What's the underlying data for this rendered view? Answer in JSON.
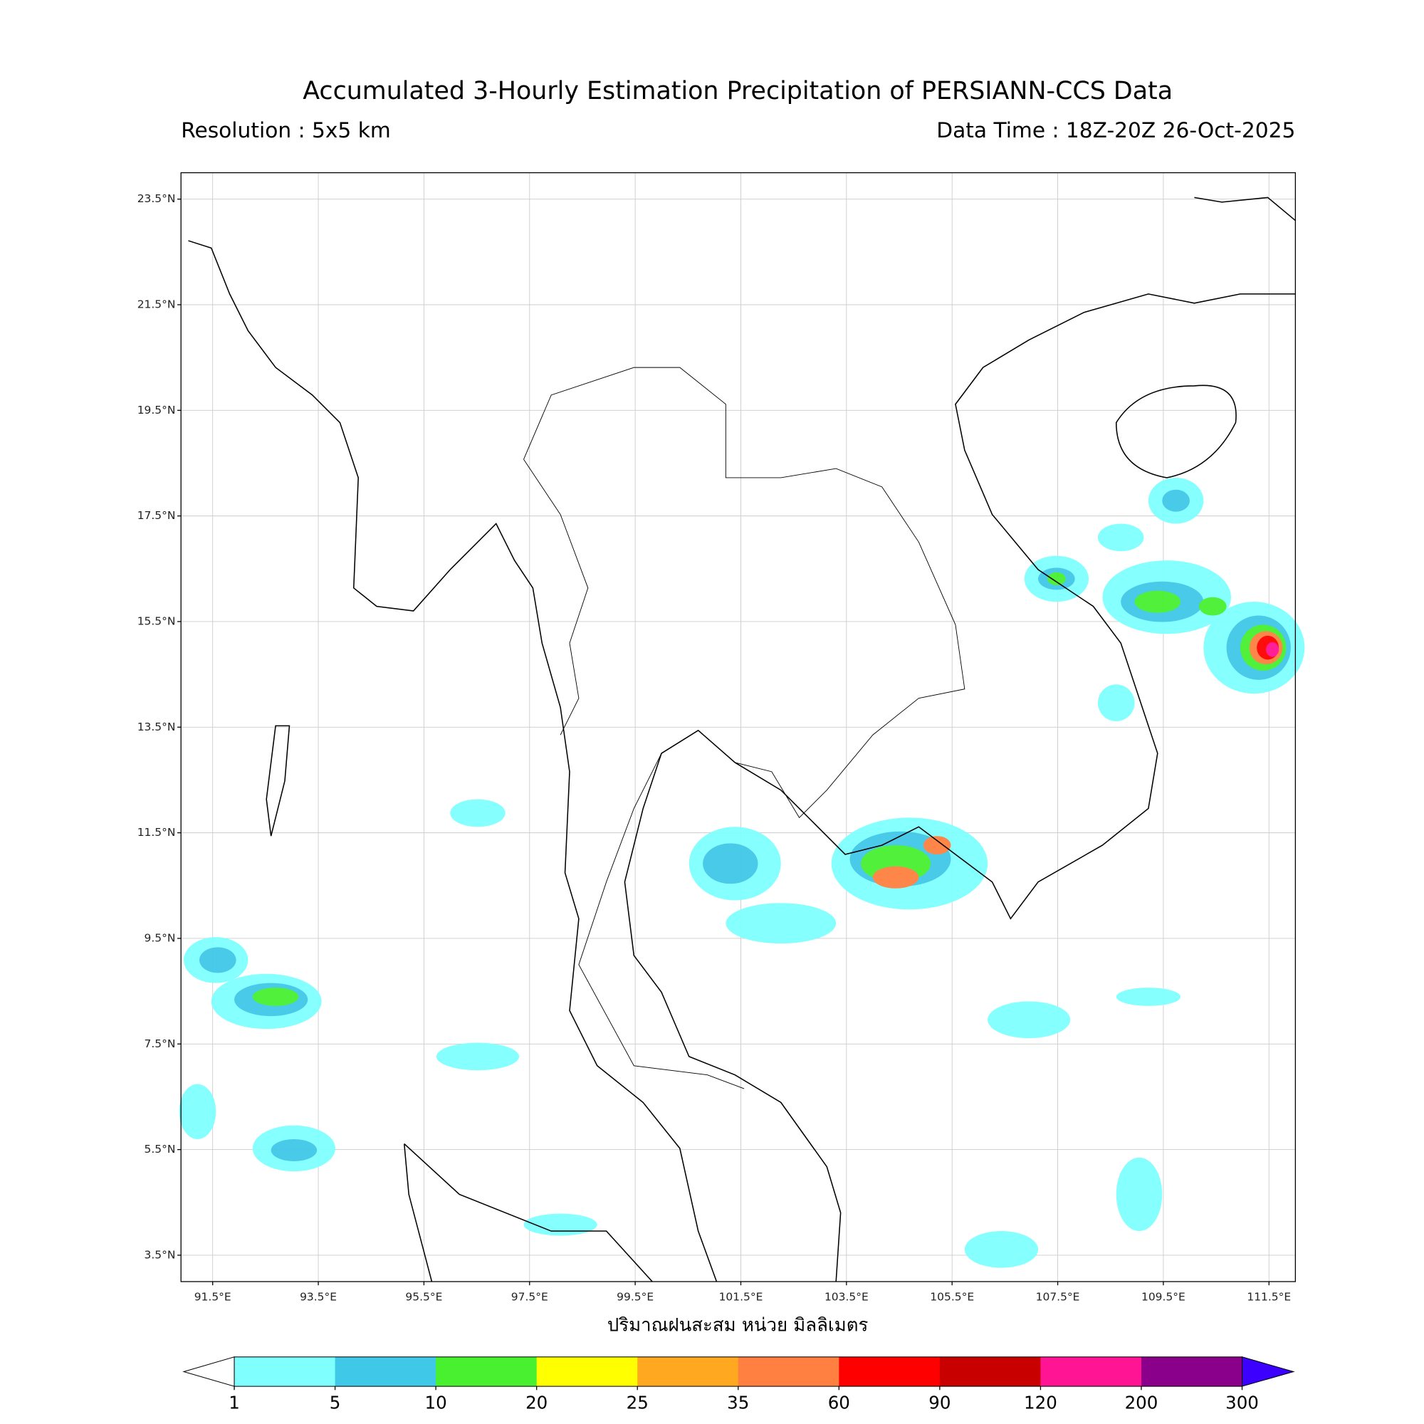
{
  "header": {
    "title": "Accumulated 3-Hourly Estimation Precipitation of PERSIANN-CCS Data",
    "resolution": "Resolution : 5x5 km",
    "data_time": "Data Time : 18Z-20Z 26-Oct-2025"
  },
  "map": {
    "lon_range": [
      90.9,
      112.0
    ],
    "lat_range": [
      3.0,
      24.0
    ],
    "lat_ticks": [
      {
        "value": 23.5,
        "label": "23.5°N"
      },
      {
        "value": 21.5,
        "label": "21.5°N"
      },
      {
        "value": 19.5,
        "label": "19.5°N"
      },
      {
        "value": 17.5,
        "label": "17.5°N"
      },
      {
        "value": 15.5,
        "label": "15.5°N"
      },
      {
        "value": 13.5,
        "label": "13.5°N"
      },
      {
        "value": 11.5,
        "label": "11.5°N"
      },
      {
        "value": 9.5,
        "label": "9.5°N"
      },
      {
        "value": 7.5,
        "label": "7.5°N"
      },
      {
        "value": 5.5,
        "label": "5.5°N"
      },
      {
        "value": 3.5,
        "label": "3.5°N"
      }
    ],
    "lon_ticks": [
      {
        "value": 91.5,
        "label": "91.5°E"
      },
      {
        "value": 93.5,
        "label": "93.5°E"
      },
      {
        "value": 95.5,
        "label": "95.5°E"
      },
      {
        "value": 97.5,
        "label": "97.5°E"
      },
      {
        "value": 99.5,
        "label": "99.5°E"
      },
      {
        "value": 101.5,
        "label": "101.5°E"
      },
      {
        "value": 103.5,
        "label": "103.5°E"
      },
      {
        "value": 105.5,
        "label": "105.5°E"
      },
      {
        "value": 107.5,
        "label": "107.5°E"
      },
      {
        "value": 109.5,
        "label": "109.5°E"
      },
      {
        "value": 111.5,
        "label": "111.5°E"
      }
    ],
    "xlabel": "ปริมาณฝนสะสม หน่วย มิลลิเมตร"
  },
  "colorbar": {
    "levels": [
      1,
      5,
      10,
      20,
      25,
      35,
      60,
      90,
      120,
      200,
      300
    ],
    "colors": [
      "#80ffff",
      "#40c8e8",
      "#48f030",
      "#ffff00",
      "#ffa820",
      "#ff8040",
      "#ff0000",
      "#c80000",
      "#ff1493",
      "#8b008b"
    ],
    "under_color": "#ffffff",
    "over_color": "#3c00ff"
  }
}
